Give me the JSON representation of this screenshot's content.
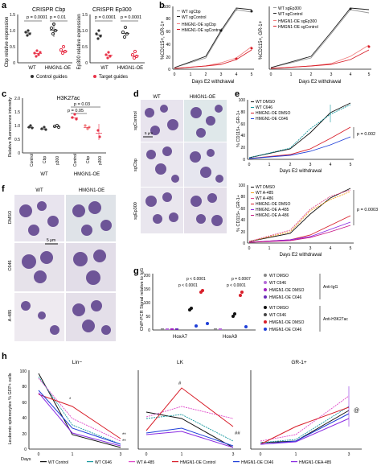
{
  "panel_a": {
    "label": "a",
    "chart1_title": "CRISPR Cbp",
    "chart1_ylabel": "Cbp relative expression",
    "chart1_p1": "p = 0.0001",
    "chart1_p2": "p = 0.01",
    "chart2_title": "CRISPR Ep300",
    "chart2_ylabel": "Ep300 relative expression",
    "chart2_p1": "p = 0.0001",
    "chart2_p2": "p = 0.0001",
    "xcats": [
      "WT",
      "HMGN1-OE"
    ],
    "legend_control": "Control guides",
    "legend_target": "Target guides",
    "y_ticks": [
      "0",
      "0.5",
      "1.0",
      "1.5"
    ],
    "colors": {
      "control": "#333333",
      "target": "#e8344a"
    }
  },
  "panel_b": {
    "label": "b",
    "ylabel": "%CD115+, GR-1+",
    "xlabel": "Days E2 withdrawal",
    "x_ticks": [
      "0",
      "1",
      "2",
      "3",
      "4",
      "5"
    ],
    "y_ticks": [
      "0",
      "20",
      "40",
      "60",
      "80",
      "100"
    ],
    "left_legend": [
      "WT sgCbp",
      "WT sgControl",
      "HMGN1-OE sgCbp",
      "HMGN1-OE sgControl"
    ],
    "right_legend": [
      "WT sgEp300",
      "WT sgControl",
      "HMGN1-OE sgEp300",
      "HMGN1-OE sgControl"
    ]
  },
  "panel_c": {
    "label": "c",
    "title": "H3K27ac",
    "ylabel": "Relative fluorescence intensity",
    "p1": "p = 0.03",
    "p2": "p = 0.05",
    "x_labels": [
      "Control",
      "Cbp",
      "p300",
      "Control",
      "Cbp",
      "p300"
    ],
    "group_labels": [
      "WT",
      "HMGN1-OE"
    ],
    "y_ticks": [
      "0",
      "0.5",
      "1.0",
      "1.5",
      "2.0"
    ]
  },
  "panel_d": {
    "label": "d",
    "cols": [
      "WT",
      "HMGN1-OE"
    ],
    "rows": [
      "sgControl",
      "sgCbp",
      "sgEp300"
    ],
    "scale": "5 μm"
  },
  "panel_e": {
    "label": "e",
    "ylabel": "% CD115+, GR-1+",
    "xlabel": "Days E2 withdrawal",
    "top_legend": [
      "WT DMSO",
      "WT C646",
      "HMGN1-OE DMSO",
      "HMGN1-OE C646"
    ],
    "bottom_legend": [
      "WT DMSO",
      "WT A-485",
      "WT A-486",
      "HMGN1-OE DMSO",
      "HMGN1-OE A-485",
      "HMGN1-OE A-486"
    ],
    "p_top": "p = 0.002",
    "p_bottom": "p = 0.0003",
    "x_ticks": [
      "0",
      "1",
      "2",
      "3",
      "4",
      "5"
    ],
    "y_ticks": [
      "0",
      "20",
      "40",
      "60",
      "80",
      "100"
    ]
  },
  "panel_f": {
    "label": "f",
    "cols": [
      "WT",
      "HMGN1-OE"
    ],
    "rows": [
      "DMSO",
      "C646",
      "A-485"
    ],
    "scale": "5 μm"
  },
  "panel_g": {
    "label": "g",
    "ylabel": "ChIP-PCR Signal relative to IgG",
    "cats": [
      "HoxA7",
      "HoxA9"
    ],
    "p_values": [
      "p < 0.0001",
      "p < 0.0001",
      "p < 0.0001",
      "p = 0.0007"
    ],
    "legend": [
      "WT DMSO",
      "WT C646",
      "HMGN1-OE DMSO",
      "HMGN1-OE C646",
      "WT DMSO",
      "WT C646",
      "HMGN1-OE DMSO",
      "HMGN1-OE C646"
    ],
    "group_igg": "Anti-IgG",
    "group_h3": "Anti-H3K27ac",
    "y_ticks": [
      "0",
      "50",
      "100",
      "150",
      "200"
    ]
  },
  "panel_h": {
    "label": "h",
    "titles": [
      "Lin−",
      "LK",
      "GR-1+"
    ],
    "ylabel": "Leukemic splenocytes % GFP+ cells",
    "xlabel": "Days",
    "x_ticks": [
      "0",
      "1",
      "3"
    ],
    "y_ticks": [
      "0",
      "20",
      "40",
      "60",
      "80",
      "100"
    ],
    "marks_lin": [
      "*",
      "**",
      "**"
    ],
    "marks_lk": [
      "#",
      "##"
    ],
    "marks_gr": [
      "@"
    ],
    "legend": [
      "WT Control",
      "WT C646",
      "WT A-485",
      "HMGN1-OE Control",
      "HMGN1-OE C646",
      "HMGN1-OEA-485"
    ]
  }
}
